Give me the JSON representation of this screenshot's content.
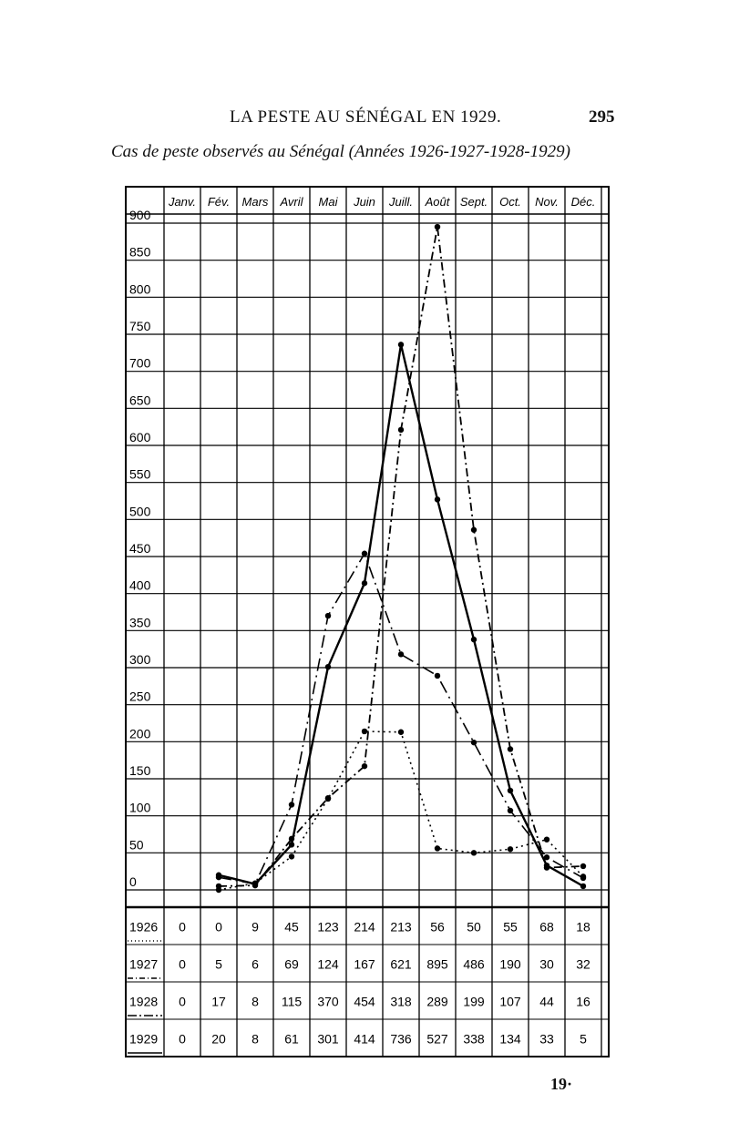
{
  "page": {
    "running_title": "LA PESTE AU SÉNÉGAL EN 1929.",
    "page_number": "295",
    "subtitle": "Cas de peste observés au Sénégal (Années 1926-1927-1928-1929)",
    "folio": "19·"
  },
  "chart_data": {
    "type": "line",
    "title": "Cas de peste observés au Sénégal (Années 1926-1927-1928-1929)",
    "categories": [
      "Janv.",
      "Fév.",
      "Mars",
      "Avril",
      "Mai",
      "Juin",
      "Juill.",
      "Août",
      "Sept.",
      "Oct.",
      "Nov.",
      "Déc."
    ],
    "y_ticks": [
      "900",
      "850",
      "800",
      "750",
      "700",
      "650",
      "600",
      "550",
      "500",
      "450",
      "400",
      "350",
      "300",
      "250",
      "200",
      "150",
      "100",
      "50",
      "0"
    ],
    "ylim": [
      0,
      900
    ],
    "grid": true,
    "series": [
      {
        "name": "1926",
        "line_style": "dotted",
        "values": [
          0,
          0,
          9,
          45,
          123,
          214,
          213,
          56,
          50,
          55,
          68,
          18
        ],
        "labels": [
          "0",
          "0",
          "9",
          "45",
          "123",
          "214",
          "213",
          "56",
          "50",
          "55",
          "68",
          "18"
        ]
      },
      {
        "name": "1927",
        "line_style": "dash-dot",
        "values": [
          0,
          5,
          6,
          69,
          124,
          167,
          621,
          895,
          486,
          190,
          30,
          32
        ],
        "labels": [
          "0",
          "5",
          "6",
          "69",
          "124",
          "167",
          "621",
          "895",
          "486",
          "190",
          "30",
          "32"
        ]
      },
      {
        "name": "1928",
        "line_style": "long-dash-dot",
        "values": [
          0,
          17,
          8,
          115,
          370,
          454,
          318,
          289,
          199,
          107,
          44,
          16
        ],
        "labels": [
          "0",
          "17",
          "8",
          "115",
          "370",
          "454",
          "318",
          "289",
          "199",
          "107",
          "44",
          "16"
        ]
      },
      {
        "name": "1929",
        "line_style": "solid",
        "values": [
          0,
          20,
          8,
          61,
          301,
          414,
          736,
          527,
          338,
          134,
          33,
          5
        ],
        "labels": [
          "0",
          "20",
          "8",
          "61",
          "301",
          "414",
          "736",
          "527",
          "338",
          "134",
          "33",
          "5"
        ]
      }
    ]
  }
}
